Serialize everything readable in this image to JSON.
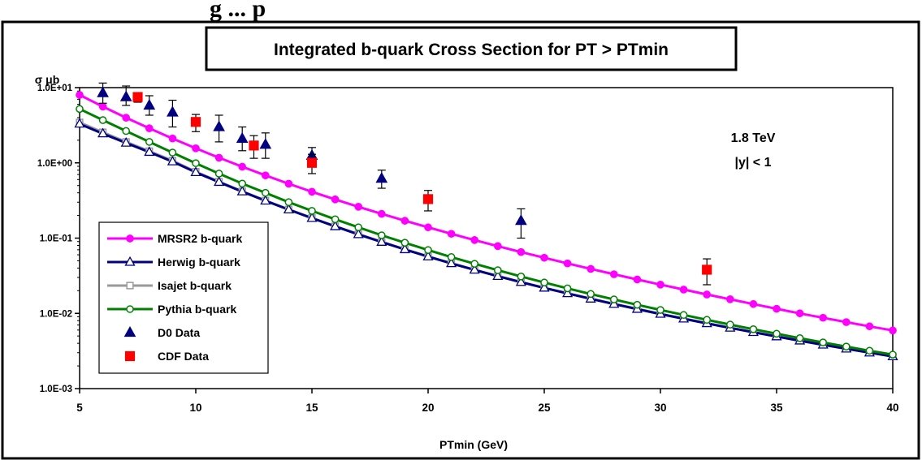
{
  "header_fragment": "g  ...  p",
  "chart_data": {
    "type": "line",
    "title": "Integrated b-quark Cross Section for PT > PTmin",
    "xlabel": "PTmin  (GeV)",
    "ylabel": "σ  μb",
    "xlim": [
      5,
      40
    ],
    "ylim": [
      0.001,
      10
    ],
    "y_scale": "log",
    "x_ticks": [
      5,
      10,
      15,
      20,
      25,
      30,
      35,
      40
    ],
    "y_ticks": [
      "1.0E-03",
      "1.0E-02",
      "1.0E-01",
      "1.0E+00",
      "1.0E+01"
    ],
    "grid": false,
    "legend_position": "bottom-left",
    "annotations": [
      "1.8 TeV",
      "|y| < 1"
    ],
    "series": [
      {
        "name": "MRSR2 b-quark",
        "kind": "line",
        "marker": "filled-circle",
        "color": "#ff00ff",
        "x": [
          5,
          6,
          7,
          8,
          9,
          10,
          11,
          12,
          13,
          14,
          15,
          16,
          17,
          18,
          19,
          20,
          21,
          22,
          23,
          24,
          25,
          26,
          27,
          28,
          29,
          30,
          31,
          32,
          33,
          34,
          35,
          36,
          37,
          38,
          39,
          40
        ],
        "y": [
          8.0,
          5.6,
          3.98,
          2.88,
          2.11,
          1.56,
          1.17,
          0.889,
          0.681,
          0.528,
          0.413,
          0.327,
          0.261,
          0.21,
          0.17,
          0.139,
          0.114,
          0.0943,
          0.0783,
          0.0653,
          0.0548,
          0.0461,
          0.039,
          0.0331,
          0.0282,
          0.0241,
          0.0207,
          0.0178,
          0.0154,
          0.0133,
          0.0115,
          0.01,
          0.00874,
          0.00765,
          0.00672,
          0.00593
        ]
      },
      {
        "name": "Herwig b-quark",
        "kind": "line",
        "marker": "open-triangle",
        "color": "#000080",
        "x": [
          5,
          6,
          7,
          8,
          9,
          10,
          11,
          12,
          13,
          14,
          15,
          16,
          17,
          18,
          19,
          20,
          21,
          22,
          23,
          24,
          25,
          26,
          27,
          28,
          29,
          30,
          31,
          32,
          33,
          34,
          35,
          36,
          37,
          38,
          39,
          40
        ],
        "y": [
          3.3,
          2.45,
          1.84,
          1.39,
          1.04,
          0.749,
          0.555,
          0.415,
          0.313,
          0.239,
          0.184,
          0.143,
          0.112,
          0.0887,
          0.0707,
          0.0568,
          0.0461,
          0.0378,
          0.0312,
          0.026,
          0.0218,
          0.0184,
          0.0156,
          0.0133,
          0.0114,
          0.0098,
          0.00848,
          0.00736,
          0.00641,
          0.00561,
          0.00492,
          0.00433,
          0.00382,
          0.00338,
          0.003,
          0.00267
        ]
      },
      {
        "name": "Isajet b-quark",
        "kind": "line",
        "marker": "open-square",
        "color": "#999999",
        "x": [
          5,
          6,
          7,
          8,
          9,
          10,
          11,
          12,
          13,
          14,
          15,
          16,
          17,
          18,
          19,
          20,
          21,
          22,
          23,
          24,
          25,
          26,
          27,
          28,
          29,
          30,
          31,
          32,
          33,
          34,
          35,
          36,
          37,
          38,
          39,
          40
        ],
        "y": [
          3.45,
          2.55,
          1.9,
          1.43,
          1.07,
          0.763,
          0.563,
          0.42,
          0.316,
          0.241,
          0.186,
          0.144,
          0.113,
          0.0893,
          0.0711,
          0.0571,
          0.0463,
          0.038,
          0.0314,
          0.0261,
          0.0219,
          0.0185,
          0.0157,
          0.0134,
          0.0115,
          0.00986,
          0.00853,
          0.0074,
          0.00645,
          0.00564,
          0.00495,
          0.00436,
          0.00385,
          0.0034,
          0.00302,
          0.00269
        ]
      },
      {
        "name": "Pythia b-quark",
        "kind": "line",
        "marker": "open-circle",
        "color": "#008000",
        "x": [
          5,
          6,
          7,
          8,
          9,
          10,
          11,
          12,
          13,
          14,
          15,
          16,
          17,
          18,
          19,
          20,
          21,
          22,
          23,
          24,
          25,
          26,
          27,
          28,
          29,
          30,
          31,
          32,
          33,
          34,
          35,
          36,
          37,
          38,
          39,
          40
        ],
        "y": [
          5.2,
          3.7,
          2.65,
          1.9,
          1.37,
          0.99,
          0.72,
          0.53,
          0.4,
          0.3,
          0.23,
          0.178,
          0.139,
          0.109,
          0.0868,
          0.0694,
          0.056,
          0.0456,
          0.0374,
          0.0309,
          0.0257,
          0.0215,
          0.0181,
          0.0153,
          0.013,
          0.0111,
          0.00952,
          0.0082,
          0.00709,
          0.00615,
          0.00536,
          0.00468,
          0.00411,
          0.00362,
          0.00319,
          0.00283
        ]
      },
      {
        "name": "D0 Data",
        "kind": "points",
        "marker": "filled-triangle",
        "color": "#000080",
        "x": [
          6,
          7,
          8,
          9,
          11,
          12,
          13,
          15,
          18,
          24
        ],
        "y": [
          8.5,
          7.5,
          5.8,
          4.7,
          3.0,
          2.1,
          1.75,
          1.25,
          0.62,
          0.17
        ],
        "err_low": [
          6.2,
          5.8,
          4.3,
          3.0,
          1.9,
          1.45,
          1.15,
          0.9,
          0.46,
          0.1
        ],
        "err_high": [
          11.5,
          10.5,
          7.8,
          6.8,
          4.3,
          3.0,
          2.5,
          1.6,
          0.8,
          0.245
        ]
      },
      {
        "name": "CDF Data",
        "kind": "points",
        "marker": "filled-square",
        "color": "#ff0000",
        "x": [
          7.5,
          10,
          12.5,
          15,
          20,
          32
        ],
        "y": [
          7.5,
          3.5,
          1.7,
          1.0,
          0.33,
          0.038
        ],
        "err_low": [
          6.4,
          2.6,
          1.15,
          0.72,
          0.23,
          0.024
        ],
        "err_high": [
          8.6,
          4.4,
          2.3,
          1.3,
          0.43,
          0.053
        ]
      }
    ]
  }
}
